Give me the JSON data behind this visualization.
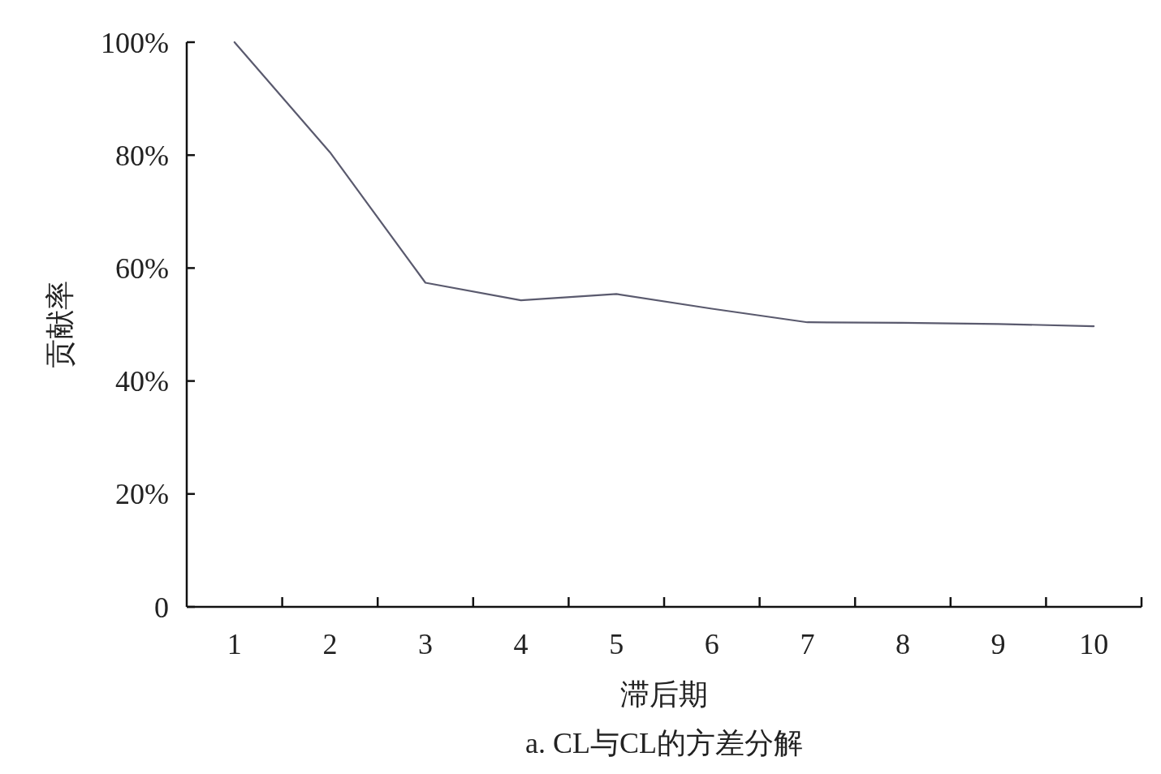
{
  "chart_data": {
    "type": "line",
    "title": "a. CL与CL的方差分解",
    "xlabel": "滞后期",
    "ylabel": "贡献率",
    "categories": [
      "1",
      "2",
      "3",
      "4",
      "5",
      "6",
      "7",
      "8",
      "9",
      "10"
    ],
    "series": [
      {
        "color": "#5a5a6e",
        "values": [
          100,
          80.5,
          57.4,
          54.3,
          55.4,
          52.8,
          50.4,
          50.3,
          50.1,
          49.7
        ]
      }
    ],
    "ylim": [
      0,
      100
    ],
    "yticks": [
      {
        "value": 0,
        "label": "0"
      },
      {
        "value": 20,
        "label": "20%"
      },
      {
        "value": 40,
        "label": "40%"
      },
      {
        "value": 60,
        "label": "60%"
      },
      {
        "value": 80,
        "label": "80%"
      },
      {
        "value": 100,
        "label": "100%"
      }
    ],
    "grid": false,
    "marker": "none",
    "line_style": "solid"
  }
}
